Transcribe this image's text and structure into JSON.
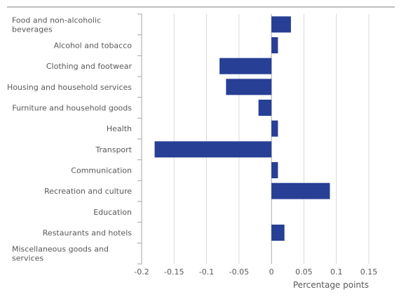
{
  "chart_data": {
    "type": "bar",
    "orientation": "horizontal",
    "categories": [
      "Food and non-alcoholic beverages",
      "Alcohol and tobacco",
      "Clothing and footwear",
      "Housing and household services",
      "Furniture and household goods",
      "Health",
      "Transport",
      "Communication",
      "Recreation and culture",
      "Education",
      "Restaurants and hotels",
      "Miscellaneous goods and services"
    ],
    "category_lines": [
      [
        "Food and non-alcoholic",
        "beverages"
      ],
      [
        "Alcohol and tobacco"
      ],
      [
        "Clothing and footwear"
      ],
      [
        "Housing and household services"
      ],
      [
        "Furniture and household goods"
      ],
      [
        "Health"
      ],
      [
        "Transport"
      ],
      [
        "Communication"
      ],
      [
        "Recreation and culture"
      ],
      [
        "Education"
      ],
      [
        "Restaurants and hotels"
      ],
      [
        "Miscellaneous goods and",
        "services"
      ]
    ],
    "category_label_align": [
      "left",
      "right",
      "right",
      "right",
      "right",
      "right",
      "right",
      "right",
      "right",
      "right",
      "right",
      "left"
    ],
    "values": [
      0.03,
      0.01,
      -0.08,
      -0.07,
      -0.02,
      0.01,
      -0.18,
      0.01,
      0.09,
      0.0,
      0.02,
      0.0
    ],
    "xlabel": "Percentage points",
    "xlim": [
      -0.2,
      0.15
    ],
    "xticks": [
      -0.2,
      -0.15,
      -0.1,
      -0.05,
      0,
      0.05,
      0.1,
      0.15
    ],
    "xtick_labels": [
      "-0.2",
      "-0.15",
      "-0.1",
      "-0.05",
      "0",
      "0.05",
      "0.1",
      "0.15"
    ],
    "grid": "vertical",
    "colors": {
      "bar": "#273f94",
      "grid": "#d9d9d9",
      "axis": "#a6a6a6",
      "text": "#595959",
      "top_rule": "#7f7f7f"
    }
  }
}
